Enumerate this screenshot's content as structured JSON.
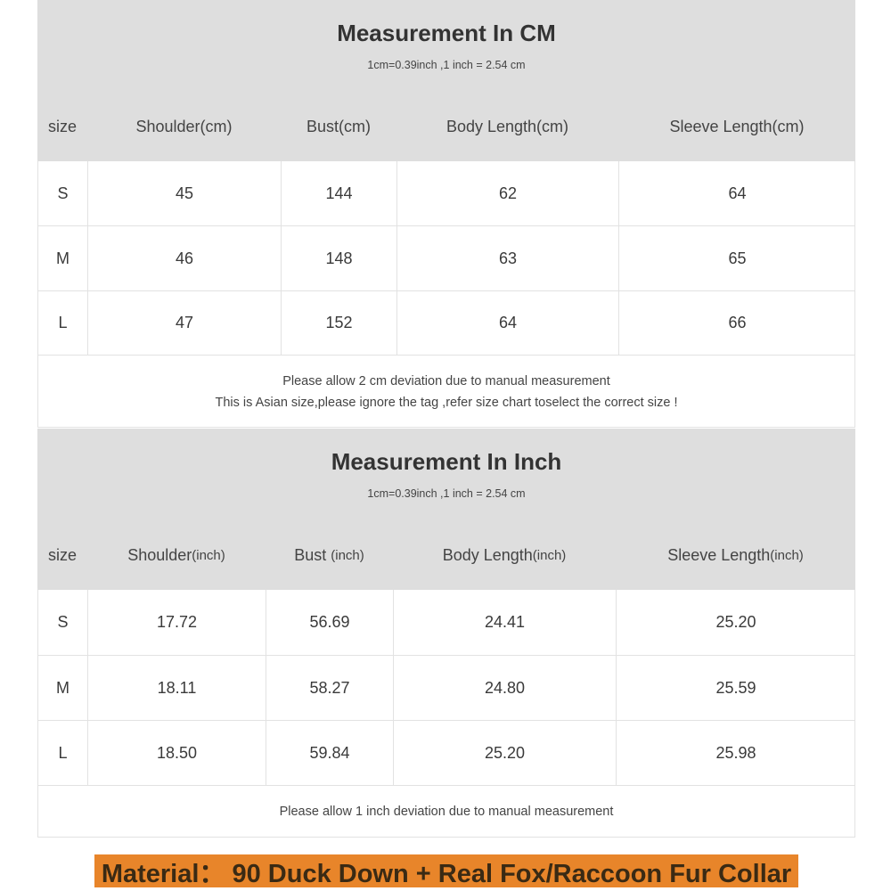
{
  "cm_table": {
    "title": "Measurement In CM",
    "subtitle": "1cm=0.39inch ,1 inch = 2.54 cm",
    "headers": [
      {
        "main": "size",
        "unit": ""
      },
      {
        "main": "Shoulder(cm)",
        "unit": ""
      },
      {
        "main": "Bust(cm)",
        "unit": ""
      },
      {
        "main": "Body Length(cm)",
        "unit": ""
      },
      {
        "main": "Sleeve Length(cm)",
        "unit": ""
      }
    ],
    "rows": [
      [
        "S",
        "45",
        "144",
        "62",
        "64"
      ],
      [
        "M",
        "46",
        "148",
        "63",
        "65"
      ],
      [
        "L",
        "47",
        "152",
        "64",
        "66"
      ]
    ],
    "notes": [
      "Please allow 2 cm deviation due to manual measurement",
      "This is Asian size,please ignore the tag ,refer size chart toselect the correct size !"
    ]
  },
  "inch_table": {
    "title": "Measurement In Inch",
    "subtitle": "1cm=0.39inch ,1 inch = 2.54 cm",
    "headers": [
      {
        "main": "size",
        "unit": ""
      },
      {
        "main": "Shoulder",
        "unit": "(inch)"
      },
      {
        "main": "Bust ",
        "unit": "(inch)"
      },
      {
        "main": "Body Length",
        "unit": "(inch)"
      },
      {
        "main": "Sleeve Length",
        "unit": "(inch)"
      }
    ],
    "rows": [
      [
        "S",
        "17.72",
        "56.69",
        "24.41",
        "25.20"
      ],
      [
        "M",
        "18.11",
        "58.27",
        "24.80",
        "25.59"
      ],
      [
        "L",
        "18.50",
        "59.84",
        "25.20",
        "25.98"
      ]
    ],
    "notes": [
      "Please allow 1 inch deviation due to manual measurement"
    ]
  },
  "material_banner": {
    "text": "Material：  90 Duck Down + Real Fox/Raccoon Fur Collar",
    "background": "#e8852a"
  }
}
